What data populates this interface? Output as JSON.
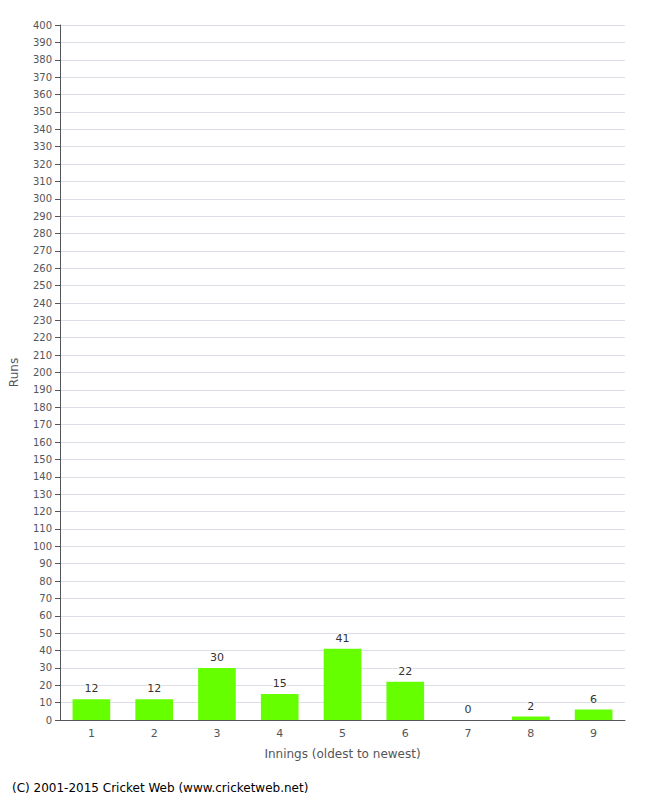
{
  "chart_data": {
    "type": "bar",
    "categories": [
      "1",
      "2",
      "3",
      "4",
      "5",
      "6",
      "7",
      "8",
      "9"
    ],
    "values": [
      12,
      12,
      30,
      15,
      41,
      22,
      0,
      2,
      6
    ],
    "color": "#66ff00",
    "xlabel": "Innings (oldest to newest)",
    "ylabel": "Runs",
    "ylim": [
      0,
      400
    ],
    "yticks": [
      0,
      10,
      20,
      30,
      40,
      50,
      60,
      70,
      80,
      90,
      100,
      110,
      120,
      130,
      140,
      150,
      160,
      170,
      180,
      190,
      200,
      210,
      220,
      230,
      240,
      250,
      260,
      270,
      280,
      290,
      300,
      310,
      320,
      330,
      340,
      350,
      360,
      370,
      380,
      390,
      400
    ],
    "grid": true,
    "data_labels": true,
    "annotations": [
      "(C) 2001-2015 Cricket Web (www.cricketweb.net)"
    ]
  }
}
